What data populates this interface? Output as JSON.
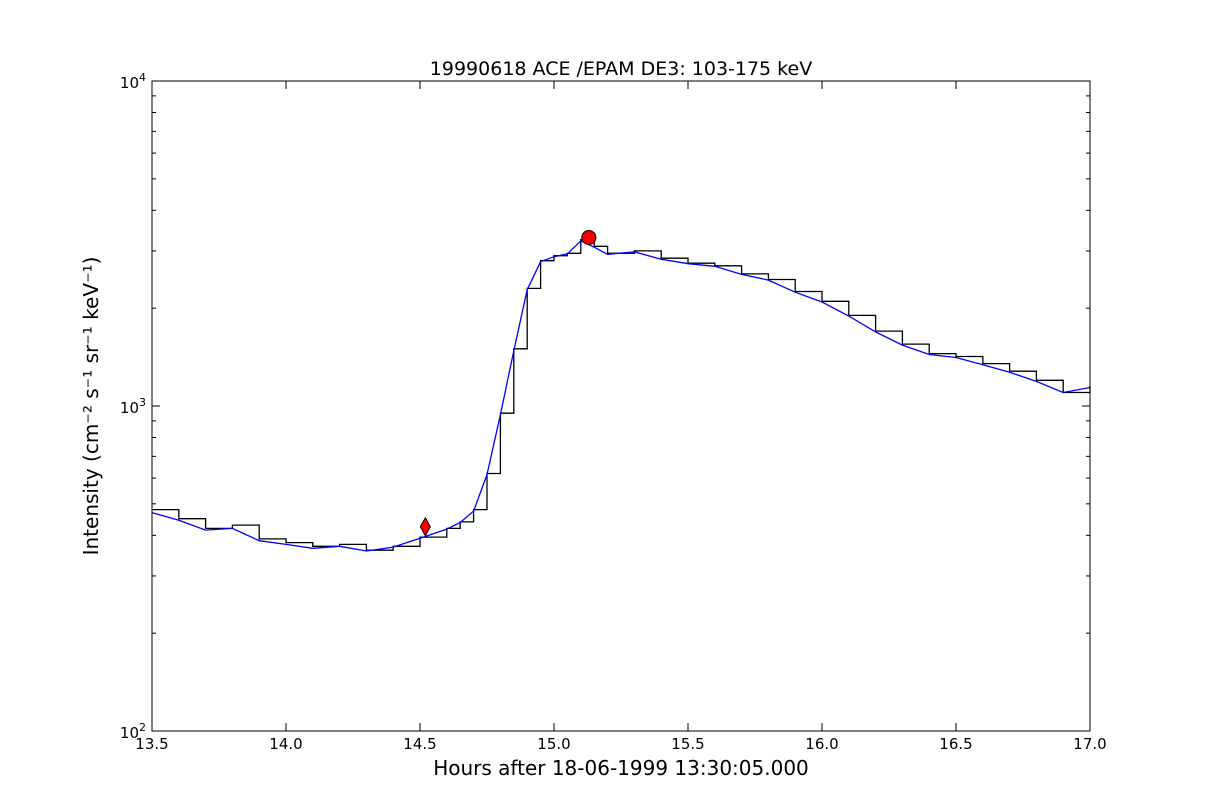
{
  "chart_data": {
    "type": "line",
    "title": "19990618 ACE /EPAM DE3: 103-175 keV",
    "xlabel": "Hours after 18-06-1999 13:30:05.000",
    "ylabel": "Intensity (cm⁻² s⁻¹ sr⁻¹ keV⁻¹)",
    "xlim": [
      13.5,
      17.0
    ],
    "ylim": [
      100,
      10000
    ],
    "yscale": "log",
    "grid": false,
    "x_ticks": [
      "13.5",
      "14.0",
      "14.5",
      "15.0",
      "15.5",
      "16.0",
      "16.5",
      "17.0"
    ],
    "y_ticks": [
      {
        "base": "10",
        "exp": "2",
        "value": 100
      },
      {
        "base": "10",
        "exp": "3",
        "value": 1000
      },
      {
        "base": "10",
        "exp": "4",
        "value": 10000
      }
    ],
    "series": [
      {
        "color": "#000000",
        "style": "steps",
        "x": [
          13.5,
          13.6,
          13.7,
          13.8,
          13.9,
          14.0,
          14.1,
          14.2,
          14.3,
          14.4,
          14.5,
          14.6,
          14.65,
          14.7,
          14.75,
          14.8,
          14.85,
          14.9,
          14.95,
          15.0,
          15.05,
          15.1,
          15.15,
          15.2,
          15.3,
          15.4,
          15.5,
          15.6,
          15.7,
          15.8,
          15.9,
          16.0,
          16.1,
          16.2,
          16.3,
          16.4,
          16.5,
          16.6,
          16.7,
          16.8,
          16.9,
          17.0
        ],
        "values": [
          480,
          450,
          420,
          430,
          390,
          380,
          370,
          375,
          360,
          370,
          395,
          420,
          440,
          480,
          620,
          950,
          1500,
          2300,
          2800,
          2900,
          2950,
          3250,
          3100,
          2950,
          3000,
          2850,
          2750,
          2700,
          2550,
          2450,
          2250,
          2100,
          1900,
          1700,
          1550,
          1450,
          1420,
          1350,
          1280,
          1200,
          1100,
          1150
        ]
      },
      {
        "color": "#0000ff",
        "style": "line",
        "x": [
          13.5,
          13.6,
          13.7,
          13.8,
          13.9,
          14.0,
          14.1,
          14.2,
          14.3,
          14.4,
          14.5,
          14.6,
          14.65,
          14.7,
          14.75,
          14.8,
          14.85,
          14.9,
          14.95,
          15.0,
          15.05,
          15.1,
          15.15,
          15.2,
          15.3,
          15.4,
          15.5,
          15.6,
          15.7,
          15.8,
          15.9,
          16.0,
          16.1,
          16.2,
          16.3,
          16.4,
          16.5,
          16.6,
          16.7,
          16.8,
          16.9,
          17.0
        ],
        "values": [
          470,
          445,
          415,
          420,
          385,
          375,
          365,
          370,
          358,
          368,
          392,
          418,
          438,
          475,
          615,
          940,
          1480,
          2280,
          2780,
          2880,
          2940,
          3220,
          3080,
          2930,
          2980,
          2830,
          2740,
          2690,
          2540,
          2440,
          2240,
          2090,
          1890,
          1690,
          1540,
          1440,
          1410,
          1340,
          1270,
          1190,
          1100,
          1140
        ]
      }
    ],
    "markers": [
      {
        "shape": "diamond",
        "color": "#ff0000",
        "x": 14.52,
        "y": 425
      },
      {
        "shape": "circle",
        "color": "#ff0000",
        "x": 15.13,
        "y": 3300
      }
    ]
  }
}
